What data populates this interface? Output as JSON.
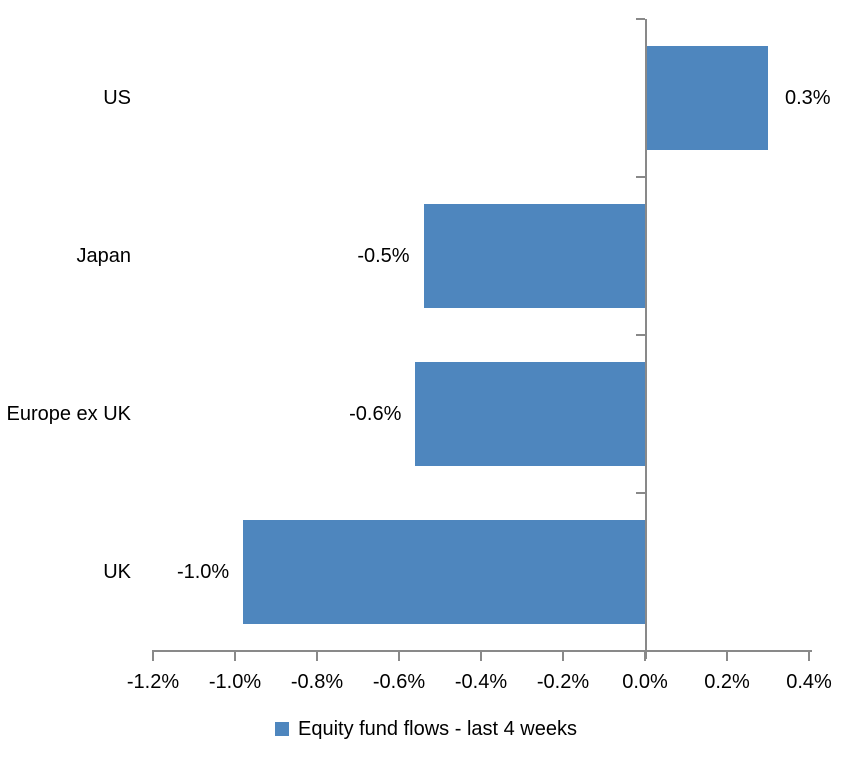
{
  "chart_data": {
    "type": "bar",
    "orientation": "horizontal",
    "title": "",
    "unit": "%",
    "categories": [
      "US",
      "Japan",
      "Europe ex UK",
      "UK"
    ],
    "values": [
      0.3,
      -0.54,
      -0.56,
      -0.98
    ],
    "data_labels": [
      "0.3%",
      "-0.5%",
      "-0.6%",
      "-1.0%"
    ],
    "series_name": "Equity fund flows - last 4 weeks",
    "xlim": [
      -1.2,
      0.4
    ],
    "x_tick_values": [
      -1.2,
      -1.0,
      -0.8,
      -0.6,
      -0.4,
      -0.2,
      0.0,
      0.2,
      0.4
    ],
    "x_tick_labels": [
      "-1.2%",
      "-1.0%",
      "-0.8%",
      "-0.6%",
      "-0.4%",
      "-0.2%",
      "0.0%",
      "0.2%",
      "0.4%"
    ],
    "grid": false,
    "legend_position": "bottom",
    "colors": {
      "bar": "#4E86BE",
      "axis": "#898989",
      "text": "#000000",
      "background": "#FFFFFF"
    }
  }
}
